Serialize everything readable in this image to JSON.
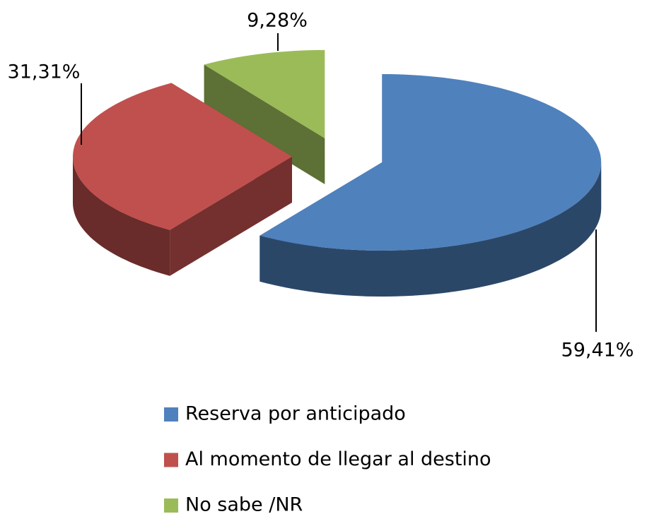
{
  "chart_data": {
    "type": "pie3d",
    "categories": [
      "Reserva por anticipado",
      "Al momento de llegar al destino",
      "No sabe /NR"
    ],
    "series": [
      {
        "values": [
          59.41,
          31.31,
          9.28
        ],
        "value_labels": [
          "59,41%",
          "31,31%",
          "9,28%"
        ],
        "colors": [
          "#4f81bd",
          "#c0504d",
          "#9bbb59"
        ]
      }
    ],
    "legend": "bottom"
  }
}
